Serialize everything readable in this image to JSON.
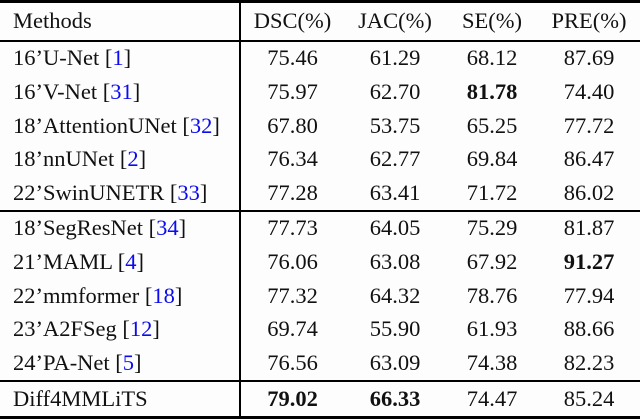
{
  "colors": {
    "citation": "#0b0bee",
    "text": "#111111",
    "rule": "#000000",
    "background": "#fdfdfd"
  },
  "table": {
    "columns": [
      "Methods",
      "DSC(%)",
      "JAC(%)",
      "SE(%)",
      "PRE(%)"
    ],
    "groups": [
      {
        "name": "single-modal-baselines",
        "rows": [
          {
            "method": "16’U-Net",
            "cite": "1",
            "values": [
              "75.46",
              "61.29",
              "68.12",
              "87.69"
            ],
            "bold": []
          },
          {
            "method": "16’V-Net",
            "cite": "31",
            "values": [
              "75.97",
              "62.70",
              "81.78",
              "74.40"
            ],
            "bold": [
              2
            ]
          },
          {
            "method": "18’AttentionUNet",
            "cite": "32",
            "values": [
              "67.80",
              "53.75",
              "65.25",
              "77.72"
            ],
            "bold": []
          },
          {
            "method": "18’nnUNet",
            "cite": "2",
            "values": [
              "76.34",
              "62.77",
              "69.84",
              "86.47"
            ],
            "bold": []
          },
          {
            "method": "22’SwinUNETR",
            "cite": "33",
            "values": [
              "77.28",
              "63.41",
              "71.72",
              "86.02"
            ],
            "bold": []
          }
        ]
      },
      {
        "name": "multi-modal-baselines",
        "rows": [
          {
            "method": "18’SegResNet",
            "cite": "34",
            "values": [
              "77.73",
              "64.05",
              "75.29",
              "81.87"
            ],
            "bold": []
          },
          {
            "method": "21’MAML",
            "cite": "4",
            "values": [
              "76.06",
              "63.08",
              "67.92",
              "91.27"
            ],
            "bold": [
              3
            ]
          },
          {
            "method": "22’mmformer",
            "cite": "18",
            "values": [
              "77.32",
              "64.32",
              "78.76",
              "77.94"
            ],
            "bold": []
          },
          {
            "method": "23’A2FSeg",
            "cite": "12",
            "values": [
              "69.74",
              "55.90",
              "61.93",
              "88.66"
            ],
            "bold": []
          },
          {
            "method": "24’PA-Net",
            "cite": "5",
            "values": [
              "76.56",
              "63.09",
              "74.38",
              "82.23"
            ],
            "bold": []
          }
        ]
      },
      {
        "name": "proposed-method",
        "rows": [
          {
            "method": "Diff4MMLiTS",
            "cite": null,
            "values": [
              "79.02",
              "66.33",
              "74.47",
              "85.24"
            ],
            "bold": [
              0,
              1
            ]
          }
        ]
      }
    ]
  }
}
